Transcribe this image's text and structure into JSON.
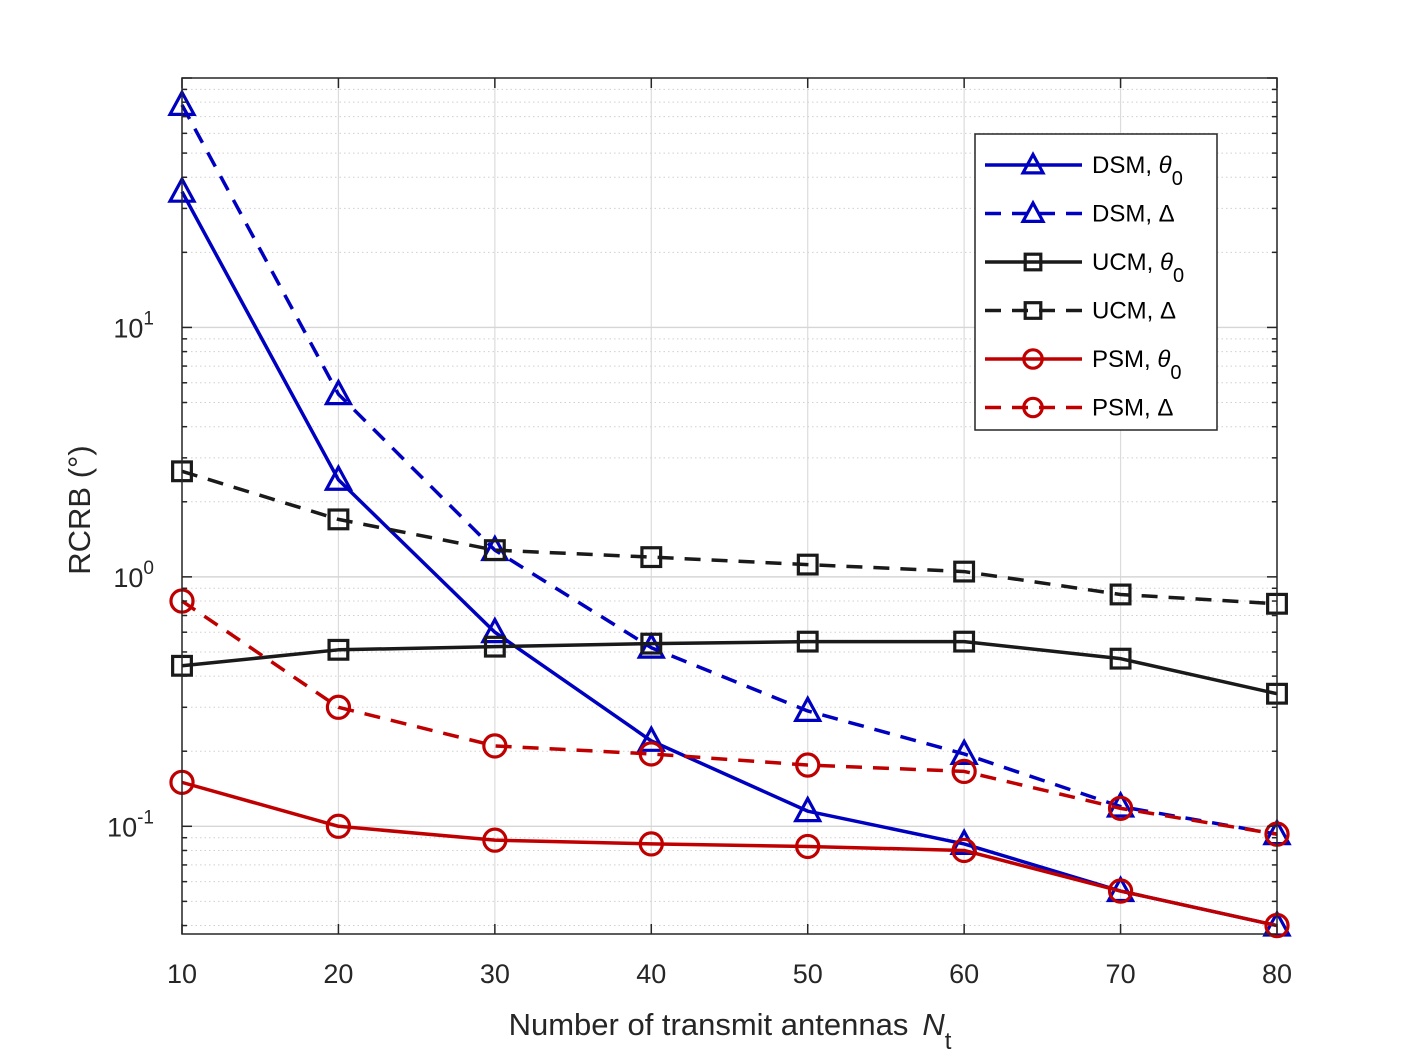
{
  "chart_data": {
    "type": "line",
    "xlabel": "Number of transmit antennas",
    "xlabel_symbol": "N",
    "xlabel_subscript": "t",
    "ylabel": "RCRB (°)",
    "yscale": "log",
    "xlim": [
      10,
      80
    ],
    "ylim": [
      0.037,
      100
    ],
    "x": [
      10,
      20,
      30,
      40,
      50,
      60,
      70,
      80
    ],
    "xticks": [
      "10",
      "20",
      "30",
      "40",
      "50",
      "60",
      "70",
      "80"
    ],
    "yticks": [
      {
        "value": 0.1,
        "base": "10",
        "exp": "-1"
      },
      {
        "value": 1,
        "base": "10",
        "exp": "0"
      },
      {
        "value": 10,
        "base": "10",
        "exp": "1"
      }
    ],
    "grid": true,
    "legend_position": "top-right",
    "series": [
      {
        "name": "DSM, θ0",
        "label_main": "DSM, ",
        "label_symbol": "θ",
        "label_sub": "0",
        "color": "#0000c0",
        "dash": "solid",
        "marker": "triangle",
        "values": [
          35,
          2.45,
          0.6,
          0.22,
          0.115,
          0.085,
          0.055,
          0.04
        ]
      },
      {
        "name": "DSM, Δ",
        "label_main": "DSM, ",
        "label_symbol": "Δ",
        "label_sub": "",
        "color": "#0000c0",
        "dash": "dashed",
        "marker": "triangle",
        "values": [
          78,
          5.4,
          1.28,
          0.52,
          0.29,
          0.195,
          0.12,
          0.093
        ]
      },
      {
        "name": "UCM, θ0",
        "label_main": "UCM, ",
        "label_symbol": "θ",
        "label_sub": "0",
        "color": "#1a1a1a",
        "dash": "solid",
        "marker": "square",
        "values": [
          0.44,
          0.51,
          0.525,
          0.54,
          0.55,
          0.55,
          0.47,
          0.34
        ]
      },
      {
        "name": "UCM, Δ",
        "label_main": "UCM, ",
        "label_symbol": "Δ",
        "label_sub": "",
        "color": "#1a1a1a",
        "dash": "dashed",
        "marker": "square",
        "values": [
          2.65,
          1.7,
          1.28,
          1.2,
          1.12,
          1.05,
          0.85,
          0.78
        ]
      },
      {
        "name": "PSM, θ0",
        "label_main": "PSM, ",
        "label_symbol": "θ",
        "label_sub": "0",
        "color": "#c00000",
        "dash": "solid",
        "marker": "circle",
        "values": [
          0.15,
          0.1,
          0.088,
          0.085,
          0.083,
          0.08,
          0.055,
          0.04
        ]
      },
      {
        "name": "PSM, Δ",
        "label_main": "PSM, ",
        "label_symbol": "Δ",
        "label_sub": "",
        "color": "#c00000",
        "dash": "dashed",
        "marker": "circle",
        "values": [
          0.8,
          0.3,
          0.21,
          0.195,
          0.176,
          0.166,
          0.118,
          0.093
        ]
      }
    ]
  }
}
